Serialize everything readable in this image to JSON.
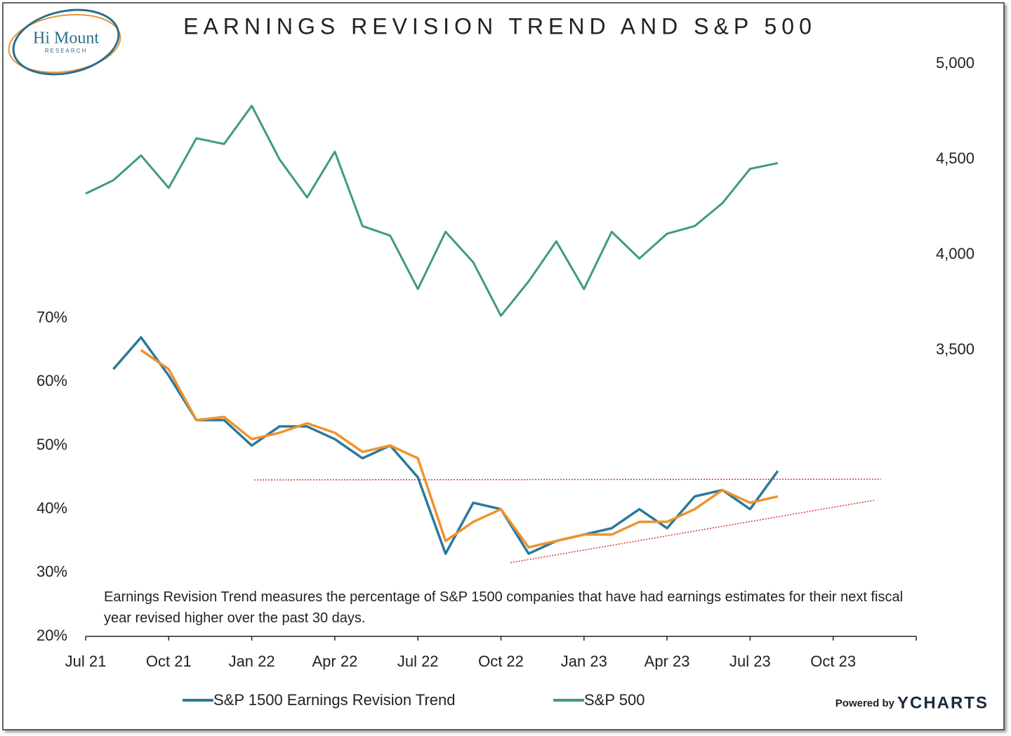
{
  "chart_data": {
    "type": "line",
    "title": "EARNINGS REVISION TREND AND S&P 500",
    "logo": {
      "title": "Hi Mount",
      "subtitle": "RESEARCH"
    },
    "note": "Earnings Revision Trend measures the percentage of S&P 1500 companies that have had earnings estimates for their next fiscal year revised higher over the past 30 days.",
    "footer": {
      "prefix": "Powered by",
      "brand": "YCHARTS"
    },
    "x": [
      "2021-07",
      "2021-08",
      "2021-09",
      "2021-10",
      "2021-11",
      "2021-12",
      "2022-01",
      "2022-02",
      "2022-03",
      "2022-04",
      "2022-05",
      "2022-06",
      "2022-07",
      "2022-08",
      "2022-09",
      "2022-10",
      "2022-11",
      "2022-12",
      "2023-01",
      "2023-02",
      "2023-03",
      "2023-04",
      "2023-05",
      "2023-06",
      "2023-07",
      "2023-08"
    ],
    "xlim": [
      "2021-07",
      "2024-01"
    ],
    "xticks": [
      {
        "value": "2021-07",
        "label": "Jul 21"
      },
      {
        "value": "2021-10",
        "label": "Oct 21"
      },
      {
        "value": "2022-01",
        "label": "Jan 22"
      },
      {
        "value": "2022-04",
        "label": "Apr 22"
      },
      {
        "value": "2022-07",
        "label": "Jul 22"
      },
      {
        "value": "2022-10",
        "label": "Oct 22"
      },
      {
        "value": "2023-01",
        "label": "Jan 23"
      },
      {
        "value": "2023-04",
        "label": "Apr 23"
      },
      {
        "value": "2023-07",
        "label": "Jul 23"
      },
      {
        "value": "2023-10",
        "label": "Oct 23"
      },
      {
        "value": "2024-01",
        "label": null
      }
    ],
    "ylim": [
      20,
      110
    ],
    "yticks": [
      {
        "value": 20,
        "label": "20%"
      },
      {
        "value": 30,
        "label": "30%"
      },
      {
        "value": 40,
        "label": "40%"
      },
      {
        "value": 50,
        "label": "50%"
      },
      {
        "value": 60,
        "label": "60%"
      },
      {
        "value": 70,
        "label": "70%"
      }
    ],
    "y2lim": [
      2000,
      5000
    ],
    "y2ticks": [
      {
        "value": 3500,
        "label": "3,500"
      },
      {
        "value": 4000,
        "label": "4,000"
      },
      {
        "value": 4500,
        "label": "4,500"
      },
      {
        "value": 5000,
        "label": "5,000"
      }
    ],
    "series": [
      {
        "name": "S&P 1500 Earnings Revision Trend",
        "color": "#2b7a9b",
        "values": [
          null,
          62,
          67,
          61,
          54,
          54,
          50,
          53,
          53,
          51,
          48,
          50,
          45,
          33,
          41,
          40,
          33,
          35,
          36,
          37,
          40,
          37,
          42,
          43,
          40,
          46
        ]
      },
      {
        "color": "#f0922b",
        "values": [
          null,
          null,
          65,
          62,
          54,
          54.5,
          51,
          52,
          53.5,
          52,
          49,
          50,
          48,
          35,
          38,
          40,
          34,
          35,
          36,
          36,
          38,
          38,
          40,
          43,
          41,
          42
        ]
      },
      {
        "name": "S&P 500",
        "color": "#3f9a82",
        "axis": "y2",
        "values": [
          4320,
          4390,
          4520,
          4350,
          4610,
          4580,
          4780,
          4500,
          4300,
          4540,
          4150,
          4100,
          3820,
          4120,
          3960,
          3680,
          3860,
          4070,
          3820,
          4120,
          3980,
          4110,
          4150,
          4270,
          4450,
          4480
        ]
      }
    ]
  }
}
